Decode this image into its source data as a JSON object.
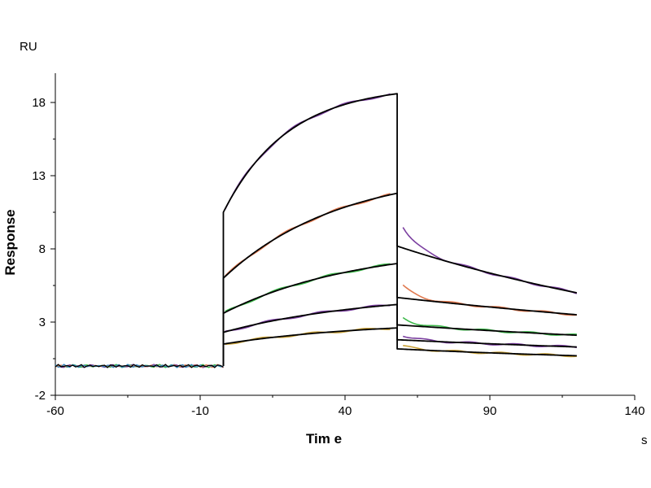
{
  "chart_data": {
    "type": "line",
    "title": "",
    "xlabel": "Tim e",
    "ylabel": "Response",
    "x_unit": "s",
    "y_unit": "RU",
    "xlim": [
      -60,
      140
    ],
    "ylim": [
      -2,
      20
    ],
    "x_ticks": [
      -60,
      -10,
      40,
      90,
      140
    ],
    "y_ticks": [
      -2,
      3,
      8,
      13,
      18
    ],
    "grid": false,
    "legend": "none",
    "baseline": {
      "x_start": -60,
      "x_end": -2,
      "y": 0
    },
    "association": {
      "start": -2,
      "end": 58
    },
    "dissociation": {
      "start": 58,
      "end": 120
    },
    "series": [
      {
        "color": "#7B3FA0",
        "start": 10.5,
        "peak": 18.6,
        "k_on": 0.045,
        "end": 5.0
      },
      {
        "color": "#E07A50",
        "start": 6.0,
        "peak": 11.8,
        "k_on": 0.025,
        "end": 3.5
      },
      {
        "color": "#3CB84A",
        "start": 3.6,
        "peak": 7.0,
        "k_on": 0.022,
        "end": 2.1
      },
      {
        "color": "#7B3FA0",
        "start": 2.3,
        "peak": 4.2,
        "k_on": 0.02,
        "end": 1.3
      },
      {
        "color": "#C9A23A",
        "start": 1.5,
        "peak": 2.6,
        "k_on": 0.02,
        "end": 0.7
      }
    ]
  }
}
